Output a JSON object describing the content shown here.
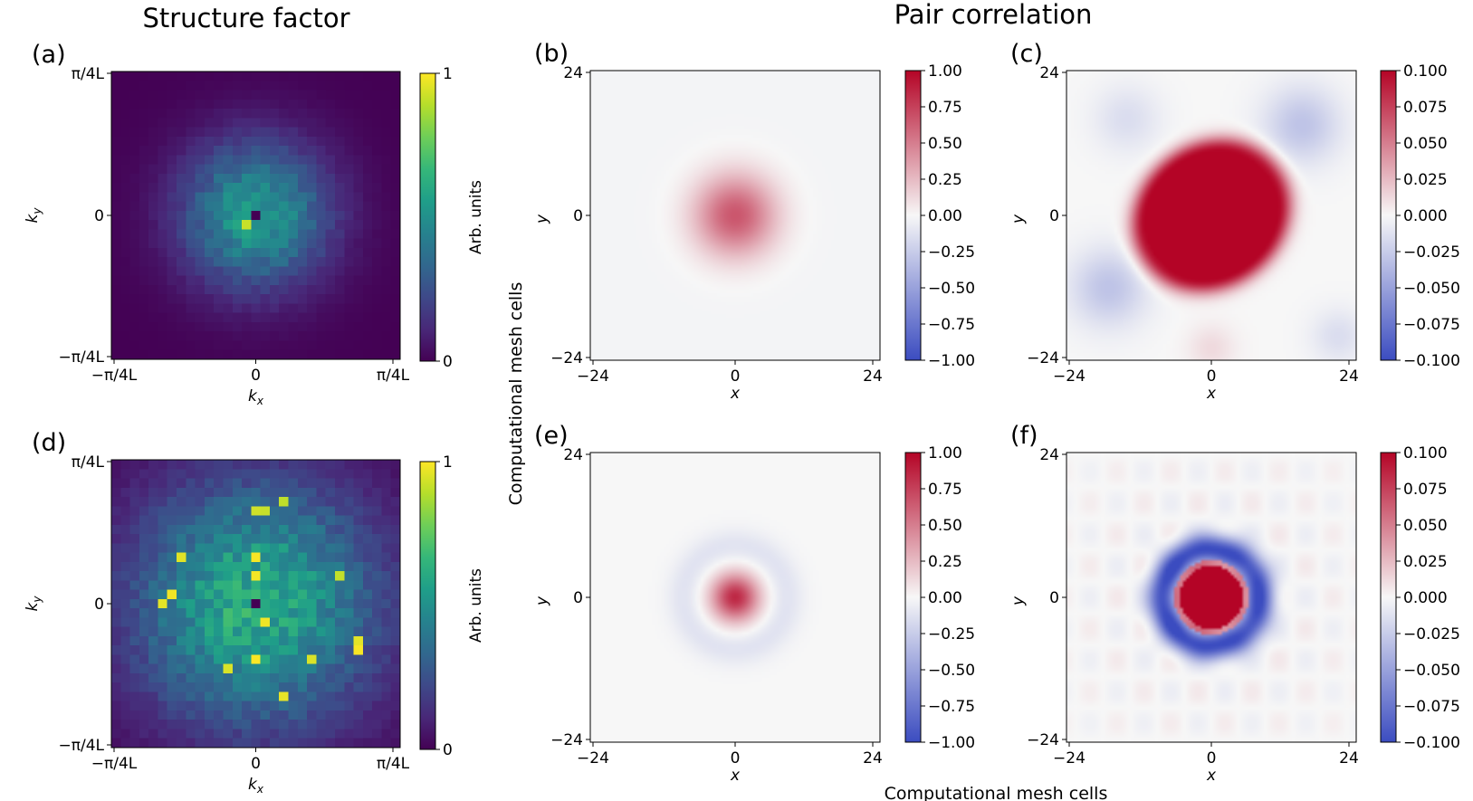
{
  "figure": {
    "title_left": "Structure factor",
    "title_right": "Pair correlation",
    "ylabel_shared": "Computational mesh cells",
    "xlabel_shared": "Computational mesh cells"
  },
  "colormaps": {
    "viridis": [
      "#440154",
      "#482878",
      "#3e4989",
      "#31688e",
      "#26828e",
      "#1f9e89",
      "#35b779",
      "#6ece58",
      "#b5de2b",
      "#fde725"
    ],
    "coolwarm_diverging": [
      "#3b4cc0",
      "#f7f7f7",
      "#b40426"
    ]
  },
  "chart_data": [
    {
      "id": "a",
      "panel_label": "(a)",
      "type": "heatmap",
      "xlabel_main": "k",
      "xlabel_sub": "x",
      "ylabel_main": "k",
      "ylabel_sub": "y",
      "x_ticks": [
        "−π/4L",
        "0",
        "π/4L"
      ],
      "y_ticks": [
        "π/4L",
        "0",
        "−π/4L"
      ],
      "colorbar_label": "Arb. units",
      "colorbar_ticks": [
        "1",
        "0"
      ],
      "grid_size": 31,
      "field": {
        "kind": "structure",
        "sigma": 5.5,
        "peak": 0.55,
        "center_dip": true,
        "noise": 0.18,
        "seed": 11
      }
    },
    {
      "id": "b",
      "panel_label": "(b)",
      "type": "heatmap",
      "xlabel": "x",
      "ylabel": "y",
      "x_ticks": [
        "−24",
        "0",
        "24"
      ],
      "y_ticks": [
        "24",
        "0",
        "−24"
      ],
      "colorbar_ticks": [
        "1.00",
        "0.75",
        "0.50",
        "0.25",
        "0.00",
        "−0.25",
        "−0.50",
        "−0.75",
        "−1.00"
      ],
      "vmin": -1.0,
      "vmax": 1.0,
      "grid_size": 97,
      "field": {
        "kind": "gauss",
        "amp": 0.68,
        "sigma": 4.8
      }
    },
    {
      "id": "c",
      "panel_label": "(c)",
      "type": "heatmap",
      "xlabel": "x",
      "ylabel": "y",
      "x_ticks": [
        "−24",
        "0",
        "24"
      ],
      "y_ticks": [
        "24",
        "0",
        "−24"
      ],
      "colorbar_ticks": [
        "0.100",
        "0.075",
        "0.050",
        "0.025",
        "0.000",
        "−0.025",
        "−0.050",
        "−0.075",
        "−0.100"
      ],
      "vmin": -0.1,
      "vmax": 0.1,
      "grid_size": 97,
      "field": {
        "kind": "ellipse_saturated"
      }
    },
    {
      "id": "d",
      "panel_label": "(d)",
      "type": "heatmap",
      "xlabel_main": "k",
      "xlabel_sub": "x",
      "ylabel_main": "k",
      "ylabel_sub": "y",
      "x_ticks": [
        "−π/4L",
        "0",
        "π/4L"
      ],
      "y_ticks": [
        "π/4L",
        "0",
        "−π/4L"
      ],
      "colorbar_label": "Arb. units",
      "colorbar_ticks": [
        "1",
        "0"
      ],
      "grid_size": 31,
      "field": {
        "kind": "structure",
        "sigma": 9.5,
        "peak": 0.62,
        "center_dip": true,
        "noise": 0.2,
        "seed": 29
      }
    },
    {
      "id": "e",
      "panel_label": "(e)",
      "type": "heatmap",
      "xlabel": "x",
      "ylabel": "y",
      "x_ticks": [
        "−24",
        "0",
        "24"
      ],
      "y_ticks": [
        "24",
        "0",
        "−24"
      ],
      "colorbar_ticks": [
        "1.00",
        "0.75",
        "0.50",
        "0.25",
        "0.00",
        "−0.25",
        "−0.50",
        "−0.75",
        "−1.00"
      ],
      "vmin": -1.0,
      "vmax": 1.0,
      "grid_size": 97,
      "field": {
        "kind": "gauss_ring",
        "amp": 0.85,
        "sigma": 2.7
      }
    },
    {
      "id": "f",
      "panel_label": "(f)",
      "type": "heatmap",
      "xlabel": "x",
      "ylabel": "y",
      "x_ticks": [
        "−24",
        "0",
        "24"
      ],
      "y_ticks": [
        "24",
        "0",
        "−24"
      ],
      "colorbar_ticks": [
        "0.100",
        "0.075",
        "0.050",
        "0.025",
        "0.000",
        "−0.025",
        "−0.050",
        "−0.075",
        "−0.100"
      ],
      "vmin": -0.1,
      "vmax": 0.1,
      "grid_size": 97,
      "field": {
        "kind": "ring_saturated"
      }
    }
  ]
}
